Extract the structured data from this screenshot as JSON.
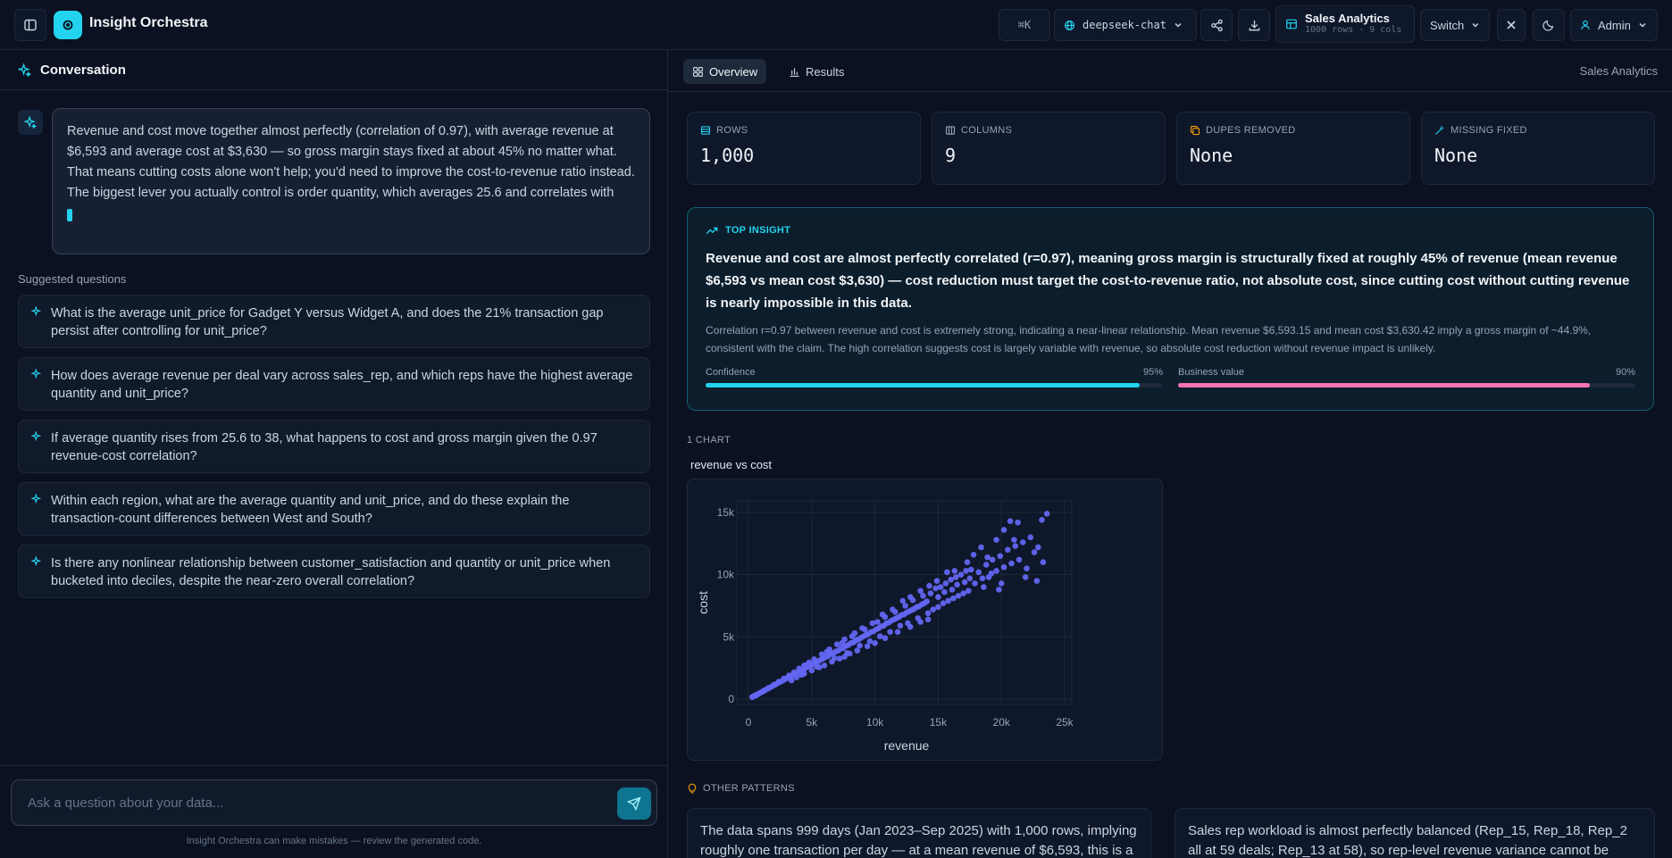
{
  "app": {
    "title": "Insight Orchestra"
  },
  "topbar": {
    "shortcut": "⌘K",
    "model": "deepseek-chat",
    "dataset_name": "Sales Analytics",
    "dataset_meta": "1000 rows · 9 cols",
    "switch_label": "Switch",
    "user_label": "Admin"
  },
  "conversation": {
    "header": "Conversation",
    "message": "Revenue and cost move together almost perfectly (correlation of 0.97), with average revenue at $6,593 and average cost at $3,630 — so gross margin stays fixed at about 45% no matter what. That means cutting costs alone won't help; you'd need to improve the cost-to-revenue ratio instead. The biggest lever you actually control is order quantity, which averages 25.6 and correlates with",
    "suggested_title": "Suggested questions",
    "suggestions": [
      "What is the average unit_price for Gadget Y versus Widget A, and does the 21% transaction gap persist after controlling for unit_price?",
      "How does average revenue per deal vary across sales_rep, and which reps have the highest average quantity and unit_price?",
      "If average quantity rises from 25.6 to 38, what happens to cost and gross margin given the 0.97 revenue-cost correlation?",
      "Within each region, what are the average quantity and unit_price, and do these explain the transaction-count differences between West and South?",
      "Is there any nonlinear relationship between customer_satisfaction and quantity or unit_price when bucketed into deciles, despite the near-zero overall correlation?"
    ],
    "input_placeholder": "Ask a question about your data...",
    "disclaimer": "Insight Orchestra can make mistakes — review the generated code."
  },
  "tabs": {
    "overview": "Overview",
    "results": "Results",
    "right_label": "Sales Analytics"
  },
  "stats": [
    {
      "label": "ROWS",
      "value": "1,000",
      "icon": "table-icon"
    },
    {
      "label": "COLUMNS",
      "value": "9",
      "icon": "columns-icon"
    },
    {
      "label": "DUPES REMOVED",
      "value": "None",
      "icon": "copy-icon"
    },
    {
      "label": "MISSING FIXED",
      "value": "None",
      "icon": "wand-icon"
    }
  ],
  "insight": {
    "label": "TOP INSIGHT",
    "headline": "Revenue and cost are almost perfectly correlated (r=0.97), meaning gross margin is structurally fixed at roughly 45% of revenue (mean revenue $6,593 vs mean cost $3,630) — cost reduction must target the cost-to-revenue ratio, not absolute cost, since cutting cost without cutting revenue is nearly impossible in this data.",
    "detail": "Correlation r=0.97 between revenue and cost is extremely strong, indicating a near-linear relationship. Mean revenue $6,593.15 and mean cost $3,630.42 imply a gross margin of ~44.9%, consistent with the claim. The high correlation suggests cost is largely variable with revenue, so absolute cost reduction without revenue impact is unlikely.",
    "confidence_label": "Confidence",
    "confidence_text": "95%",
    "confidence": 0.95,
    "business_label": "Business value",
    "business_text": "90%",
    "business": 0.9,
    "colors": {
      "confidence": "#22d3ee",
      "business": "#f472b6"
    }
  },
  "charts_label": "1 CHART",
  "chart_data": {
    "type": "scatter",
    "title": "revenue vs cost",
    "xlabel": "revenue",
    "ylabel": "cost",
    "xlim": [
      0,
      25000
    ],
    "ylim": [
      0,
      15500
    ],
    "xticks": [
      0,
      5000,
      10000,
      15000,
      20000,
      25000
    ],
    "xtick_labels": [
      "0",
      "5k",
      "10k",
      "15k",
      "20k",
      "25k"
    ],
    "yticks": [
      0,
      5000,
      10000,
      15000
    ],
    "ytick_labels": [
      "0",
      "5k",
      "10k",
      "15k"
    ],
    "color": "#6366f1",
    "grid": true,
    "points": [
      [
        300,
        160
      ],
      [
        500,
        280
      ],
      [
        700,
        380
      ],
      [
        900,
        500
      ],
      [
        1100,
        600
      ],
      [
        1300,
        720
      ],
      [
        1500,
        820
      ],
      [
        1700,
        930
      ],
      [
        1900,
        1040
      ],
      [
        2100,
        1150
      ],
      [
        2300,
        1270
      ],
      [
        2500,
        1380
      ],
      [
        2700,
        1480
      ],
      [
        2900,
        1600
      ],
      [
        3100,
        1700
      ],
      [
        3300,
        1820
      ],
      [
        3500,
        1930
      ],
      [
        3700,
        2040
      ],
      [
        3900,
        2150
      ],
      [
        4100,
        2260
      ],
      [
        4300,
        2370
      ],
      [
        4500,
        2480
      ],
      [
        4700,
        2600
      ],
      [
        4900,
        2700
      ],
      [
        5100,
        2800
      ],
      [
        5300,
        2950
      ],
      [
        5500,
        3020
      ],
      [
        5700,
        3150
      ],
      [
        5900,
        3250
      ],
      [
        6100,
        3380
      ],
      [
        6300,
        3450
      ],
      [
        6500,
        3620
      ],
      [
        6700,
        3700
      ],
      [
        6900,
        3820
      ],
      [
        7100,
        3900
      ],
      [
        7300,
        4050
      ],
      [
        7500,
        4100
      ],
      [
        7700,
        4280
      ],
      [
        7900,
        4350
      ],
      [
        8100,
        4500
      ],
      [
        8300,
        4550
      ],
      [
        8500,
        4720
      ],
      [
        8700,
        4800
      ],
      [
        8900,
        4920
      ],
      [
        9100,
        5050
      ],
      [
        9300,
        5150
      ],
      [
        9500,
        5250
      ],
      [
        9700,
        5400
      ],
      [
        9900,
        5450
      ],
      [
        10100,
        5600
      ],
      [
        10300,
        5700
      ],
      [
        10500,
        5850
      ],
      [
        10700,
        5900
      ],
      [
        10900,
        6100
      ],
      [
        11100,
        6150
      ],
      [
        11300,
        6300
      ],
      [
        11500,
        6400
      ],
      [
        11700,
        6500
      ],
      [
        11900,
        6600
      ],
      [
        12100,
        6750
      ],
      [
        12300,
        6800
      ],
      [
        12500,
        6950
      ],
      [
        12700,
        7050
      ],
      [
        12900,
        7150
      ],
      [
        13100,
        7250
      ],
      [
        13300,
        7400
      ],
      [
        13500,
        7450
      ],
      [
        13700,
        7600
      ],
      [
        13900,
        7700
      ],
      [
        14100,
        7850
      ],
      [
        4200,
        1950
      ],
      [
        4600,
        2750
      ],
      [
        5400,
        2600
      ],
      [
        6200,
        3800
      ],
      [
        6800,
        3300
      ],
      [
        7400,
        4500
      ],
      [
        7800,
        3700
      ],
      [
        8200,
        5050
      ],
      [
        8800,
        4300
      ],
      [
        9200,
        5600
      ],
      [
        9600,
        4650
      ],
      [
        10200,
        6200
      ],
      [
        10400,
        5050
      ],
      [
        10800,
        6600
      ],
      [
        11200,
        5400
      ],
      [
        11600,
        7000
      ],
      [
        12000,
        5900
      ],
      [
        12400,
        7500
      ],
      [
        12600,
        6100
      ],
      [
        13000,
        7950
      ],
      [
        13400,
        6500
      ],
      [
        13800,
        8300
      ],
      [
        14200,
        6900
      ],
      [
        14400,
        8500
      ],
      [
        14600,
        7200
      ],
      [
        14800,
        8900
      ],
      [
        15000,
        7400
      ],
      [
        15200,
        9000
      ],
      [
        15400,
        7700
      ],
      [
        15600,
        9300
      ],
      [
        15800,
        7900
      ],
      [
        16000,
        9600
      ],
      [
        16200,
        8100
      ],
      [
        16400,
        9800
      ],
      [
        16600,
        8300
      ],
      [
        16800,
        10000
      ],
      [
        17000,
        8500
      ],
      [
        17200,
        10300
      ],
      [
        17400,
        8700
      ],
      [
        17600,
        10400
      ],
      [
        15000,
        8200
      ],
      [
        15500,
        8600
      ],
      [
        16100,
        8800
      ],
      [
        16500,
        9200
      ],
      [
        17100,
        9400
      ],
      [
        17500,
        9700
      ],
      [
        17900,
        9300
      ],
      [
        18200,
        10200
      ],
      [
        18500,
        9700
      ],
      [
        18800,
        10800
      ],
      [
        19000,
        9800
      ],
      [
        19300,
        11200
      ],
      [
        19600,
        10300
      ],
      [
        19900,
        11500
      ],
      [
        20200,
        10600
      ],
      [
        20500,
        12000
      ],
      [
        20800,
        10900
      ],
      [
        21100,
        12300
      ],
      [
        21400,
        11200
      ],
      [
        21700,
        12600
      ],
      [
        22000,
        10500
      ],
      [
        22300,
        13000
      ],
      [
        22600,
        11800
      ],
      [
        22900,
        12200
      ],
      [
        23200,
        14400
      ],
      [
        23600,
        14900
      ],
      [
        21300,
        14200
      ],
      [
        20700,
        14300
      ],
      [
        20200,
        13600
      ],
      [
        19600,
        12800
      ],
      [
        18900,
        11400
      ],
      [
        18400,
        12200
      ],
      [
        17800,
        11600
      ],
      [
        17300,
        11000
      ],
      [
        22800,
        9500
      ],
      [
        21900,
        9800
      ],
      [
        20000,
        9300
      ],
      [
        19200,
        10100
      ],
      [
        18600,
        9000
      ],
      [
        21000,
        12800
      ],
      [
        16300,
        10300
      ],
      [
        15700,
        10200
      ],
      [
        14900,
        9500
      ],
      [
        14300,
        9100
      ],
      [
        13600,
        8700
      ],
      [
        12800,
        8200
      ],
      [
        12200,
        7900
      ],
      [
        11400,
        7200
      ],
      [
        10600,
        6800
      ],
      [
        9800,
        6100
      ],
      [
        9000,
        5700
      ],
      [
        8400,
        5300
      ],
      [
        7600,
        4800
      ],
      [
        7000,
        4400
      ],
      [
        6400,
        4000
      ],
      [
        5800,
        3600
      ],
      [
        5200,
        3200
      ],
      [
        4800,
        2950
      ],
      [
        4400,
        2700
      ],
      [
        4000,
        2450
      ],
      [
        3600,
        2150
      ],
      [
        3200,
        1900
      ],
      [
        2800,
        1650
      ],
      [
        2400,
        1400
      ],
      [
        2000,
        1150
      ],
      [
        1600,
        900
      ],
      [
        1200,
        650
      ],
      [
        800,
        420
      ],
      [
        600,
        300
      ],
      [
        400,
        220
      ],
      [
        3400,
        1500
      ],
      [
        3800,
        1750
      ],
      [
        4400,
        2050
      ],
      [
        5000,
        2300
      ],
      [
        5600,
        2550
      ],
      [
        6000,
        2700
      ],
      [
        6600,
        3000
      ],
      [
        7200,
        3250
      ],
      [
        7600,
        3400
      ],
      [
        8000,
        3650
      ],
      [
        8600,
        3900
      ],
      [
        9400,
        4250
      ],
      [
        10000,
        4500
      ],
      [
        10800,
        4900
      ],
      [
        11800,
        5400
      ],
      [
        12800,
        5800
      ],
      [
        13600,
        6200
      ],
      [
        14200,
        6400
      ],
      [
        19800,
        8800
      ],
      [
        23300,
        11000
      ]
    ]
  },
  "patterns_label": "OTHER PATTERNS",
  "patterns": [
    "The data spans 999 days (Jan 2023–Sep 2025) with 1,000 rows, implying roughly one transaction per day — at a mean revenue of $6,593, this is a",
    "Sales rep workload is almost perfectly balanced (Rep_15, Rep_18, Rep_2 all at 59 deals; Rep_13 at 58), so rep-level revenue variance cannot be"
  ]
}
